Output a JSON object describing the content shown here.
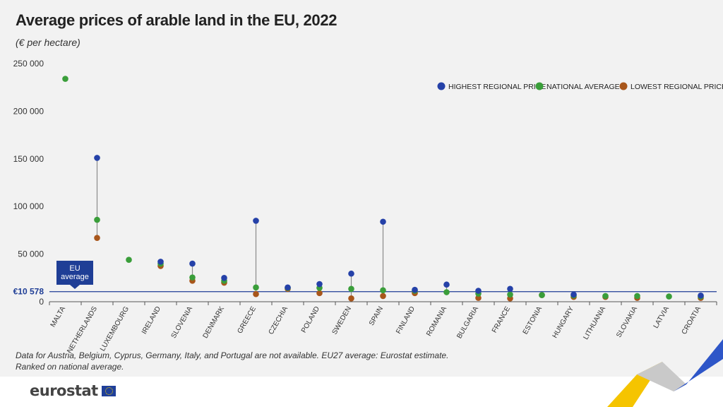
{
  "title": "Average prices of arable land in the EU, 2022",
  "subtitle": "(€ per hectare)",
  "footnote_1": "Data for Austria, Belgium, Cyprus, Germany, Italy, and Portugal are not available. EU27 average: Eurostat estimate.",
  "footnote_2": "Ranked on national average.",
  "logo_text": "eurostat",
  "chart_data": {
    "type": "scatter",
    "title": "Average prices of arable land in the EU, 2022",
    "subtitle": "(€ per hectare)",
    "ylim": [
      0,
      250000
    ],
    "yticks": [
      0,
      50000,
      100000,
      150000,
      200000,
      250000
    ],
    "ytick_labels": [
      "0",
      "50 000",
      "100 000",
      "150 000",
      "200 000",
      "250 000"
    ],
    "categories": [
      "MALTA",
      "NETHERLANDS",
      "LUXEMBOURG",
      "IRELAND",
      "SLOVENIA",
      "DENMARK",
      "GREECE",
      "CZECHIA",
      "POLAND",
      "SWEDEN",
      "SPAIN",
      "FINLAND",
      "ROMANIA",
      "BULGARIA",
      "FRANCE",
      "ESTONIA",
      "HUNGARY",
      "LITHUANIA",
      "SLOVAKIA",
      "LATVIA",
      "CROATIA"
    ],
    "series": [
      {
        "name": "HIGHEST REGIONAL PRICE",
        "color": "#2541a8",
        "values": [
          null,
          151000,
          null,
          42000,
          40000,
          25000,
          85000,
          15000,
          18500,
          29500,
          84000,
          12500,
          18000,
          11500,
          13500,
          null,
          7500,
          null,
          null,
          null,
          6500
        ]
      },
      {
        "name": "NATIONAL AVERAGE",
        "color": "#3a9e3a",
        "values": [
          234000,
          86000,
          44000,
          40000,
          25500,
          22000,
          15000,
          14500,
          14500,
          13500,
          12000,
          11500,
          10000,
          8500,
          7500,
          7000,
          6500,
          6000,
          6000,
          5500,
          5500
        ]
      },
      {
        "name": "LOWEST REGIONAL PRICE",
        "color": "#a8561b",
        "values": [
          null,
          67000,
          null,
          37500,
          22000,
          20000,
          8000,
          13500,
          9000,
          3500,
          6000,
          9000,
          null,
          4000,
          3500,
          7000,
          5000,
          5000,
          4000,
          null,
          4000
        ]
      }
    ],
    "reference_line": {
      "value": 10578,
      "label": "€10 578",
      "caption": "EU average",
      "color": "#1f3e96"
    },
    "legend_position": "top-right",
    "grid": false
  }
}
